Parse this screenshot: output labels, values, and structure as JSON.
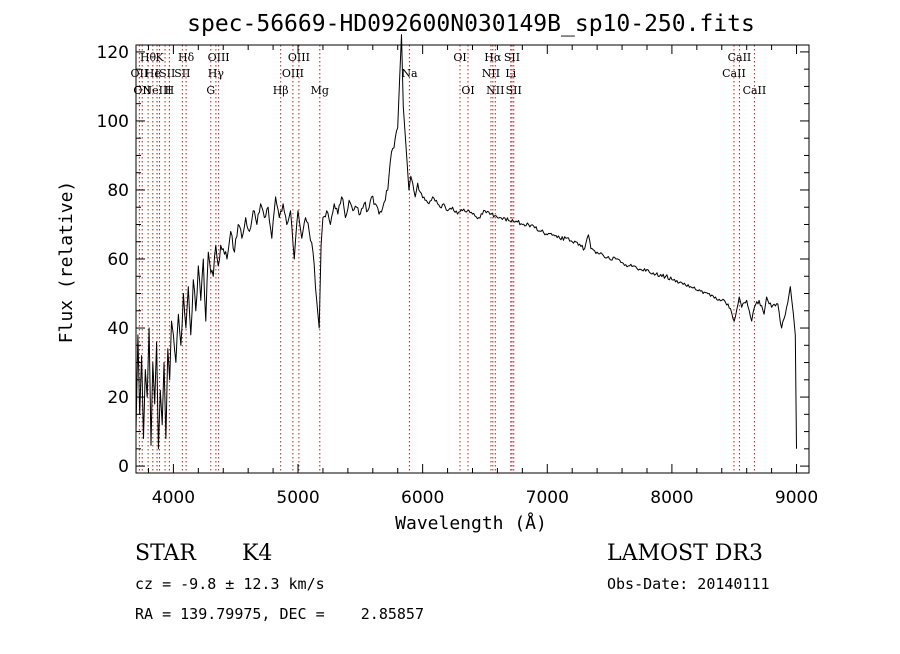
{
  "chart_data": {
    "type": "line",
    "title": "spec-56669-HD092600N030149B_sp10-250.fits",
    "xlabel": "Wavelength (Å)",
    "ylabel": "Flux (relative)",
    "xlim": [
      3700,
      9100
    ],
    "ylim": [
      -2,
      122
    ],
    "xticks": [
      {
        "value": 4000,
        "label": "4000"
      },
      {
        "value": 5000,
        "label": "5000"
      },
      {
        "value": 6000,
        "label": "6000"
      },
      {
        "value": 7000,
        "label": "7000"
      },
      {
        "value": 8000,
        "label": "8000"
      },
      {
        "value": 9000,
        "label": "9000"
      }
    ],
    "yticks": [
      {
        "value": 0,
        "label": "0"
      },
      {
        "value": 20,
        "label": "20"
      },
      {
        "value": 40,
        "label": "40"
      },
      {
        "value": 60,
        "label": "60"
      },
      {
        "value": 80,
        "label": "80"
      },
      {
        "value": 100,
        "label": "100"
      },
      {
        "value": 120,
        "label": "120"
      }
    ],
    "series": [
      {
        "name": "spectrum",
        "x": [
          3700,
          3715,
          3730,
          3745,
          3760,
          3775,
          3790,
          3805,
          3820,
          3835,
          3850,
          3865,
          3880,
          3895,
          3910,
          3925,
          3940,
          3955,
          3970,
          3985,
          4000,
          4020,
          4040,
          4060,
          4080,
          4100,
          4120,
          4140,
          4160,
          4180,
          4200,
          4220,
          4240,
          4260,
          4280,
          4300,
          4320,
          4340,
          4360,
          4380,
          4400,
          4430,
          4460,
          4490,
          4520,
          4550,
          4580,
          4610,
          4640,
          4670,
          4700,
          4730,
          4760,
          4790,
          4820,
          4850,
          4880,
          4910,
          4940,
          4970,
          5000,
          5030,
          5060,
          5090,
          5120,
          5150,
          5170,
          5185,
          5200,
          5230,
          5260,
          5290,
          5320,
          5350,
          5380,
          5410,
          5440,
          5470,
          5500,
          5530,
          5560,
          5590,
          5620,
          5650,
          5680,
          5700,
          5720,
          5740,
          5760,
          5780,
          5800,
          5815,
          5830,
          5845,
          5860,
          5875,
          5890,
          5905,
          5920,
          5940,
          5960,
          5990,
          6020,
          6050,
          6080,
          6110,
          6140,
          6170,
          6200,
          6240,
          6280,
          6320,
          6360,
          6400,
          6450,
          6500,
          6550,
          6600,
          6650,
          6700,
          6750,
          6800,
          6850,
          6900,
          6950,
          7000,
          7050,
          7100,
          7150,
          7200,
          7250,
          7300,
          7330,
          7350,
          7400,
          7450,
          7500,
          7550,
          7600,
          7650,
          7700,
          7750,
          7800,
          7850,
          7900,
          7950,
          8000,
          8050,
          8100,
          8150,
          8200,
          8250,
          8300,
          8350,
          8400,
          8450,
          8500,
          8540,
          8560,
          8600,
          8640,
          8662,
          8700,
          8740,
          8760,
          8800,
          8850,
          8880,
          8920,
          8950,
          8975,
          8990,
          9000
        ],
        "y": [
          10,
          38,
          15,
          32,
          8,
          28,
          20,
          40,
          6,
          30,
          18,
          36,
          5,
          22,
          12,
          30,
          8,
          34,
          25,
          42,
          38,
          30,
          44,
          35,
          50,
          40,
          52,
          38,
          54,
          45,
          58,
          48,
          60,
          42,
          62,
          56,
          55,
          64,
          58,
          64,
          63,
          60,
          68,
          62,
          70,
          66,
          72,
          68,
          74,
          70,
          76,
          72,
          75,
          66,
          78,
          72,
          76,
          70,
          74,
          60,
          74,
          66,
          72,
          68,
          62,
          48,
          40,
          64,
          72,
          74,
          70,
          76,
          73,
          78,
          72,
          77,
          74,
          75,
          73,
          76,
          74,
          78,
          76,
          73,
          75,
          77,
          80,
          88,
          92,
          95,
          98,
          112,
          125,
          104,
          96,
          88,
          80,
          84,
          82,
          78,
          82,
          79,
          77,
          76,
          78,
          77,
          75,
          76,
          74,
          75,
          73,
          74,
          74,
          73,
          72,
          74,
          73,
          72,
          72,
          71,
          71,
          70,
          70,
          69,
          68,
          67,
          67,
          66,
          66,
          65,
          64,
          63,
          67,
          63,
          62,
          61,
          60,
          60,
          59,
          58,
          58,
          57,
          57,
          56,
          55,
          55,
          54,
          53,
          53,
          52,
          51,
          50,
          50,
          49,
          48,
          47,
          42,
          49,
          46,
          48,
          42,
          46,
          48,
          44,
          49,
          46,
          47,
          40,
          46,
          52,
          44,
          38,
          5
        ]
      }
    ],
    "emission_lines": [
      {
        "x": 3727,
        "label": "OII",
        "row": 2
      },
      {
        "x": 3750,
        "label": "OII",
        "row": 3
      },
      {
        "x": 3797,
        "label": "Hθ",
        "row": 1
      },
      {
        "x": 3835,
        "label": "He",
        "row": 2
      },
      {
        "x": 3869,
        "label": "NeIII",
        "row": 3
      },
      {
        "x": 3889,
        "label": "K",
        "row": 1
      },
      {
        "x": 3933,
        "label": "ISII",
        "row": 2
      },
      {
        "x": 3968,
        "label": "H",
        "row": 3
      },
      {
        "x": 4072,
        "label": "SII",
        "row": 2
      },
      {
        "x": 4102,
        "label": "Hδ",
        "row": 1
      },
      {
        "x": 4300,
        "label": "G",
        "row": 3
      },
      {
        "x": 4341,
        "label": "Hγ",
        "row": 2
      },
      {
        "x": 4363,
        "label": "OIII",
        "row": 1
      },
      {
        "x": 4861,
        "label": "Hβ",
        "row": 3
      },
      {
        "x": 4959,
        "label": "OIII",
        "row": 2
      },
      {
        "x": 5007,
        "label": "OIII",
        "row": 1
      },
      {
        "x": 5175,
        "label": "Mg",
        "row": 3
      },
      {
        "x": 5894,
        "label": "Na",
        "row": 2
      },
      {
        "x": 6300,
        "label": "OI",
        "row": 1
      },
      {
        "x": 6364,
        "label": "OI",
        "row": 3
      },
      {
        "x": 6548,
        "label": "NII",
        "row": 2
      },
      {
        "x": 6563,
        "label": "Hα",
        "row": 1
      },
      {
        "x": 6583,
        "label": "NII",
        "row": 3
      },
      {
        "x": 6707,
        "label": "Li",
        "row": 2
      },
      {
        "x": 6717,
        "label": "SII",
        "row": 1
      },
      {
        "x": 6731,
        "label": "SII",
        "row": 3
      },
      {
        "x": 8498,
        "label": "CaII",
        "row": 2
      },
      {
        "x": 8542,
        "label": "CaII",
        "row": 1
      },
      {
        "x": 8662,
        "label": "CaII",
        "row": 3
      }
    ]
  },
  "info": {
    "object_type": "STAR",
    "subclass": "K4",
    "survey": "LAMOST DR3",
    "velocity": "cz = -9.8 ± 12.3 km/s",
    "obs_date": "Obs-Date: 20140111",
    "coords": "RA = 139.79975, DEC =    2.85857"
  },
  "colors": {
    "line": "#000000",
    "marker": "#b22222",
    "background": "#ffffff"
  }
}
